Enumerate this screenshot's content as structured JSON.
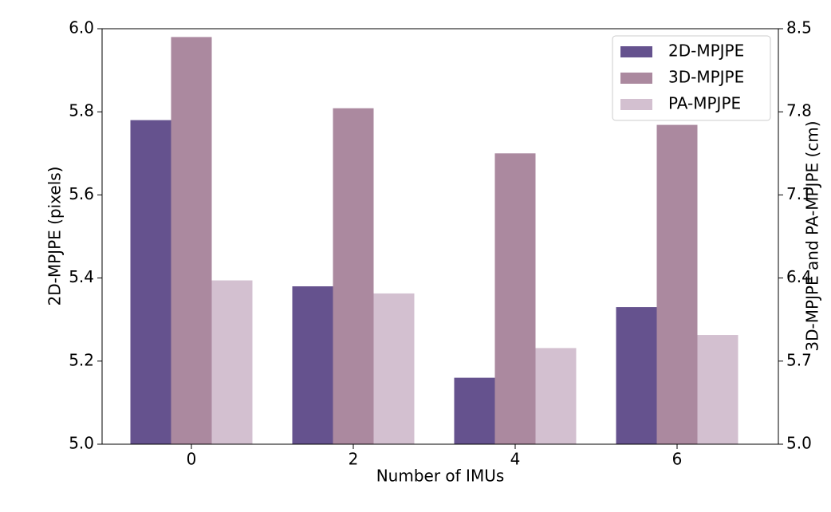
{
  "chart_data": {
    "type": "bar",
    "xlabel": "Number of IMUs",
    "ylabel": "2D-MPJPE (pixels)",
    "y2label": "3D-MPJPE and PA-MPJPE (cm)",
    "categories": [
      "0",
      "2",
      "4",
      "6"
    ],
    "series": [
      {
        "name": "2D-MPJPE",
        "color": "#65528e",
        "values": [
          5.78,
          5.38,
          5.16,
          5.33
        ]
      },
      {
        "name": "3D-MPJPE",
        "color": "#ab899f",
        "axis": "y2",
        "values": [
          8.43,
          7.83,
          7.45,
          7.69
        ]
      },
      {
        "name": "PA-MPJPE",
        "color": "#d3c0d0",
        "axis": "y2",
        "values": [
          6.38,
          6.27,
          5.81,
          5.92
        ]
      }
    ],
    "ylim": [
      5.0,
      6.0
    ],
    "yticks": [
      {
        "value": 5.0,
        "label": "5.0"
      },
      5.2,
      5.4,
      5.6,
      5.8,
      {
        "value": 6.0,
        "label": "6.0"
      }
    ],
    "y2lim": [
      5.0,
      8.5
    ],
    "y2ticks": [
      {
        "value": 5.0,
        "label": "5.0"
      },
      5.7,
      6.4,
      7.1,
      7.8,
      8.5
    ],
    "legend": "upper right"
  }
}
